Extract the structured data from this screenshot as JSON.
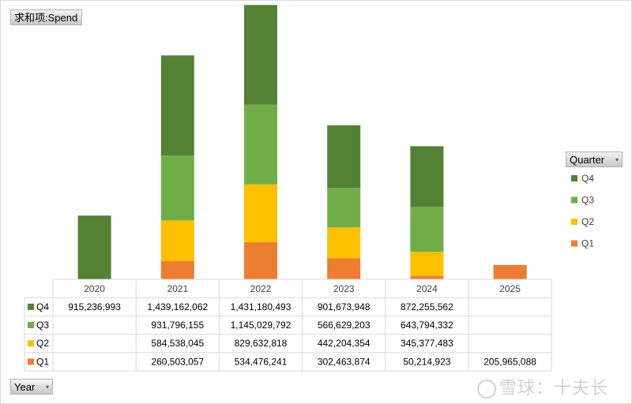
{
  "pivot": {
    "value_field": "求和项:Spend",
    "row_field": "Year",
    "column_field": "Quarter"
  },
  "chart_data": {
    "type": "bar",
    "stacked": true,
    "categories": [
      "2020",
      "2021",
      "2022",
      "2023",
      "2024",
      "2025"
    ],
    "series": [
      {
        "name": "Q1",
        "color": "#ED7D31",
        "values": [
          null,
          260503057,
          534476241,
          302463874,
          50214923,
          205965088
        ],
        "display": [
          "",
          "260,503,057",
          "534,476,241",
          "302,463,874",
          "50,214,923",
          "205,965,088"
        ]
      },
      {
        "name": "Q2",
        "color": "#FFC000",
        "values": [
          null,
          584538045,
          829632818,
          442204354,
          345377483,
          null
        ],
        "display": [
          "",
          "584,538,045",
          "829,632,818",
          "442,204,354",
          "345,377,483",
          ""
        ]
      },
      {
        "name": "Q3",
        "color": "#70AD47",
        "values": [
          null,
          931796155,
          1145029792,
          566629203,
          643794332,
          null
        ],
        "display": [
          "",
          "931,796,155",
          "1,145,029,792",
          "566,629,203",
          "643,794,332",
          ""
        ]
      },
      {
        "name": "Q4",
        "color": "#548235",
        "values": [
          915236993,
          1439162062,
          1431180493,
          901673948,
          872255562,
          null
        ],
        "display": [
          "915,236,993",
          "1,439,162,062",
          "1,431,180,493",
          "901,673,948",
          "872,255,562",
          ""
        ]
      }
    ],
    "legend_title": "Quarter",
    "legend_order": [
      "Q4",
      "Q3",
      "Q2",
      "Q1"
    ],
    "table_row_order": [
      "Q4",
      "Q3",
      "Q2",
      "Q1"
    ],
    "ylim": [
      0,
      4000000000
    ],
    "grid": false,
    "legend_position": "right",
    "data_table": true
  },
  "watermark": {
    "text": "雪球：十夫长"
  }
}
